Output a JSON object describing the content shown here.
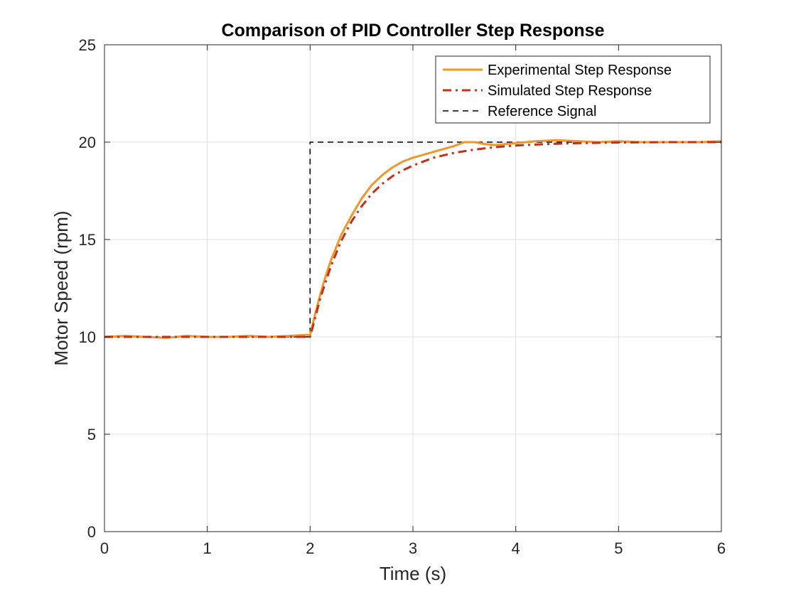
{
  "chart_data": {
    "type": "line",
    "title": "Comparison of PID Controller Step Response",
    "xlabel": "Time (s)",
    "ylabel": "Motor Speed (rpm)",
    "xlim": [
      0,
      6
    ],
    "ylim": [
      0,
      25
    ],
    "xticks": [
      0,
      1,
      2,
      3,
      4,
      5,
      6
    ],
    "yticks": [
      0,
      5,
      10,
      15,
      20,
      25
    ],
    "grid": true,
    "legend_position": "top-right",
    "series": [
      {
        "name": "Experimental Step Response",
        "style": "solid",
        "color": "#F0962D",
        "x": [
          0,
          0.2,
          0.4,
          0.6,
          0.8,
          1.0,
          1.2,
          1.4,
          1.6,
          1.8,
          1.95,
          2.0,
          2.05,
          2.1,
          2.15,
          2.2,
          2.3,
          2.4,
          2.5,
          2.6,
          2.7,
          2.8,
          2.9,
          3.0,
          3.1,
          3.2,
          3.3,
          3.4,
          3.5,
          3.6,
          3.7,
          3.8,
          4.0,
          4.2,
          4.4,
          4.6,
          4.8,
          5.0,
          5.2,
          5.4,
          5.6,
          5.8,
          6.0
        ],
        "y": [
          10.0,
          10.05,
          10.0,
          9.95,
          10.05,
          10.0,
          10.0,
          10.05,
          10.0,
          10.05,
          10.1,
          10.1,
          11.2,
          12.2,
          13.1,
          13.9,
          15.2,
          16.2,
          17.1,
          17.8,
          18.3,
          18.7,
          19.0,
          19.2,
          19.35,
          19.5,
          19.65,
          19.8,
          20.0,
          20.0,
          19.9,
          19.85,
          19.95,
          20.05,
          20.1,
          20.05,
          20.0,
          20.05,
          20.0,
          20.0,
          20.0,
          20.0,
          20.05
        ]
      },
      {
        "name": "Simulated Step Response",
        "style": "dashdot",
        "color": "#C2301A",
        "x": [
          0,
          0.5,
          1.0,
          1.5,
          2.0,
          2.05,
          2.1,
          2.2,
          2.3,
          2.4,
          2.5,
          2.6,
          2.7,
          2.8,
          2.9,
          3.0,
          3.2,
          3.4,
          3.6,
          3.8,
          4.0,
          4.3,
          4.6,
          5.0,
          5.5,
          6.0
        ],
        "y": [
          10.0,
          10.0,
          10.0,
          10.0,
          10.0,
          11.0,
          12.0,
          13.6,
          14.9,
          15.9,
          16.7,
          17.35,
          17.85,
          18.25,
          18.55,
          18.8,
          19.2,
          19.45,
          19.62,
          19.74,
          19.83,
          19.9,
          19.95,
          19.98,
          20.0,
          20.0
        ]
      },
      {
        "name": "Reference Signal",
        "style": "dashed",
        "color": "#000000",
        "x": [
          0,
          2.0,
          2.0,
          6.0
        ],
        "y": [
          10,
          10,
          20,
          20
        ]
      }
    ]
  }
}
